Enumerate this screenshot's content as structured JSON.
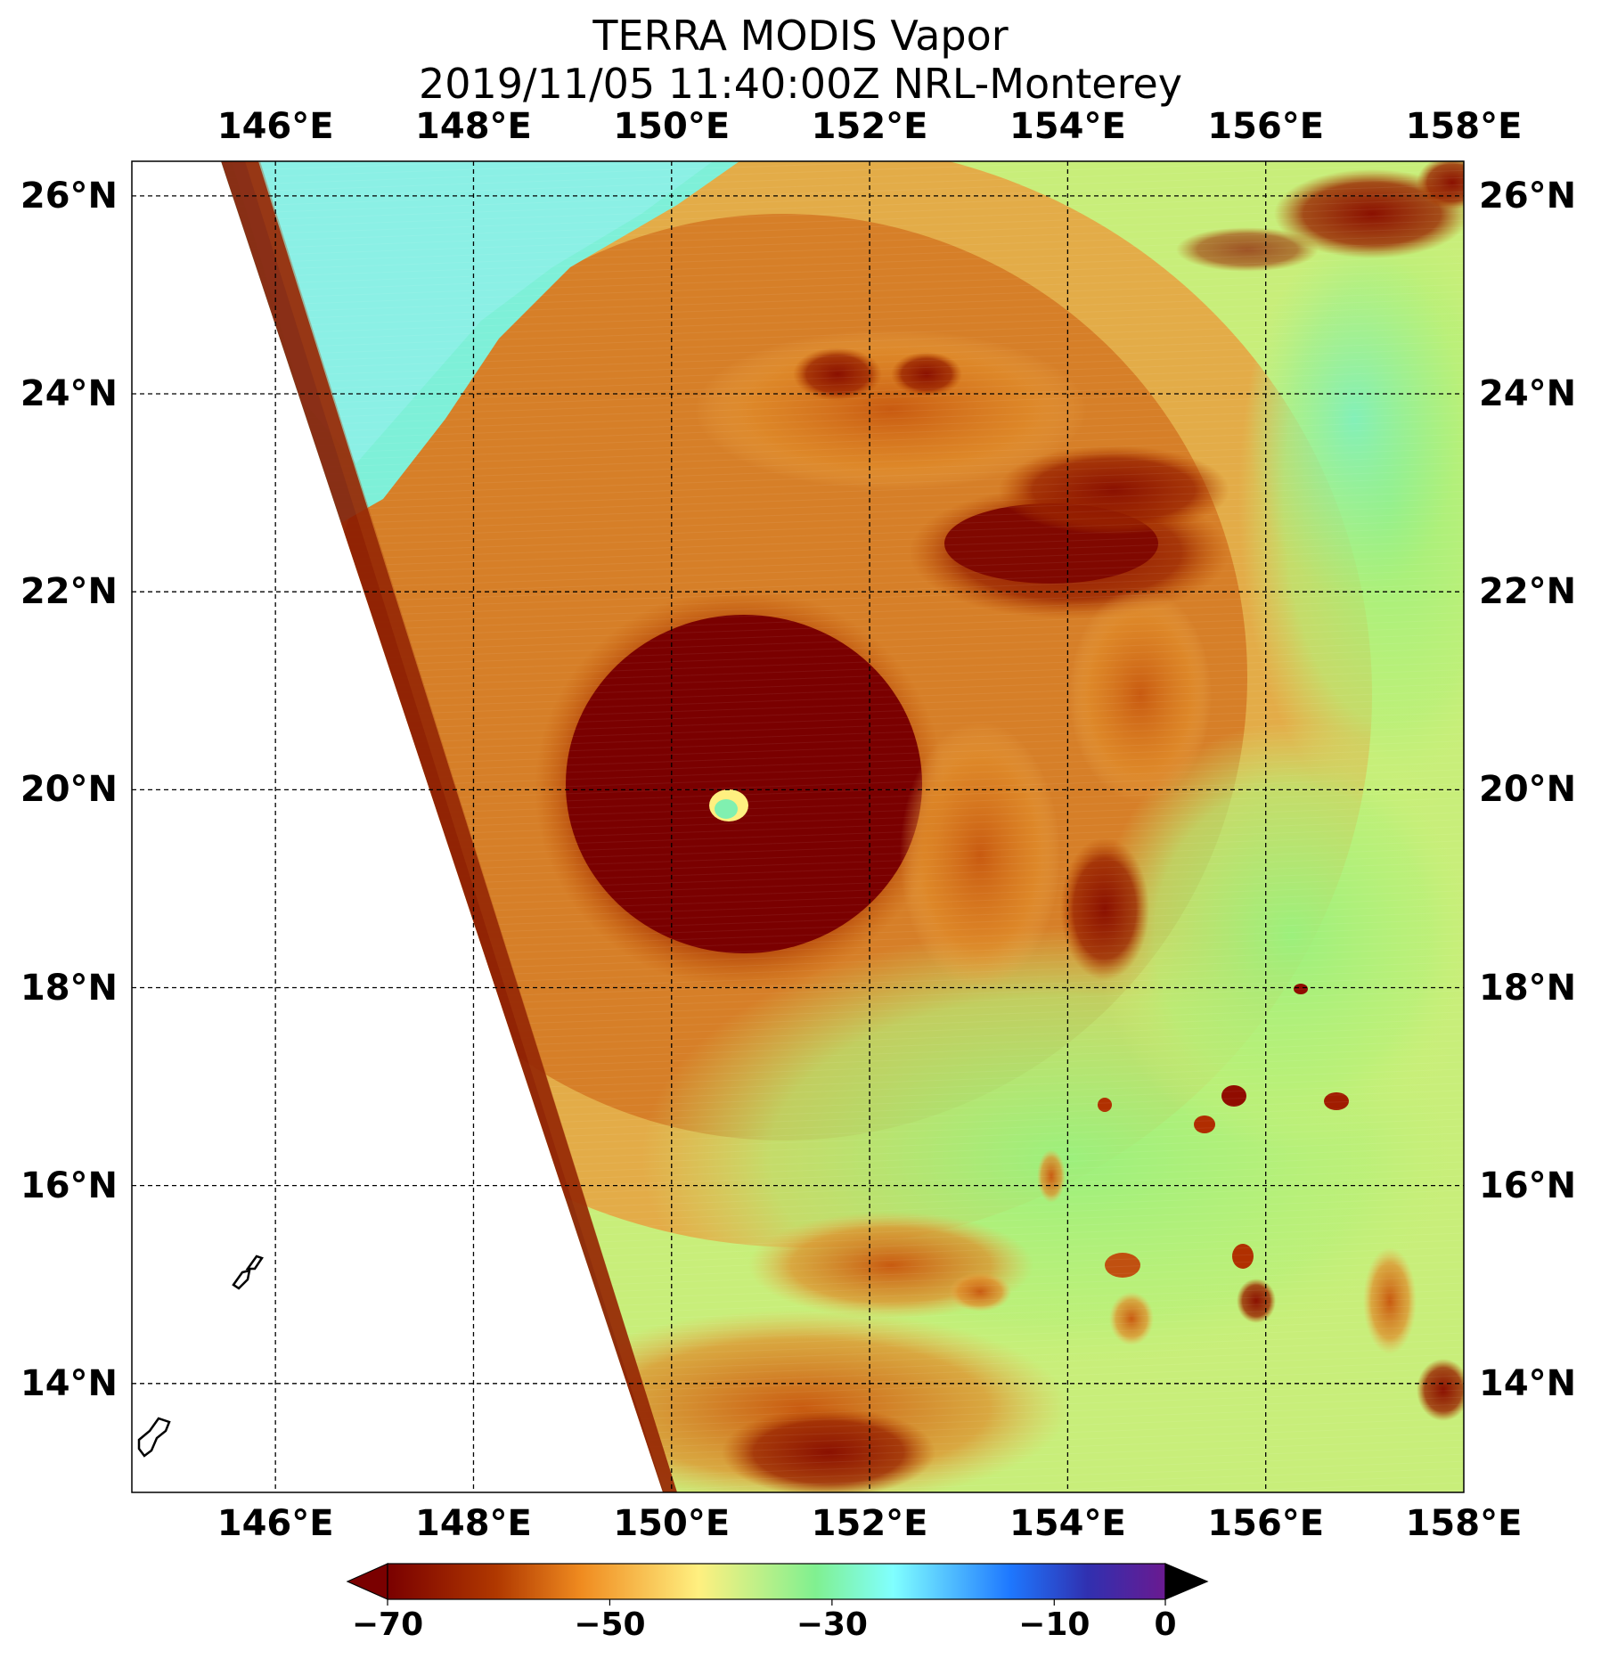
{
  "header": {
    "title": "TERRA MODIS Vapor",
    "subtitle": "2019/11/05 11:40:00Z NRL-Monterey"
  },
  "axes": {
    "longitude_labels": [
      "146°E",
      "148°E",
      "150°E",
      "152°E",
      "154°E",
      "156°E",
      "158°E"
    ],
    "latitude_labels": [
      "26°N",
      "24°N",
      "22°N",
      "20°N",
      "18°N",
      "16°N",
      "14°N"
    ],
    "longitudes": [
      146,
      148,
      150,
      152,
      154,
      156,
      158
    ],
    "latitudes": [
      26,
      24,
      22,
      20,
      18,
      16,
      14
    ],
    "lon_range": [
      144.55,
      158.0
    ],
    "lat_range": [
      12.9,
      26.35
    ],
    "grid": "dashed"
  },
  "colorbar": {
    "ticks": [
      "−70",
      "−50",
      "−30",
      "−10",
      "0"
    ],
    "values": [
      -70,
      -50,
      -30,
      -10,
      0
    ],
    "range": [
      -70,
      0
    ],
    "extend": "both",
    "colors": [
      "#7a0000",
      "#c04a00",
      "#f09a20",
      "#fff080",
      "#8cf080",
      "#80ffff",
      "#3a8cff",
      "#2040c0",
      "#601890",
      "#000000"
    ]
  },
  "map": {
    "storm_center": [
      150.55,
      19.8
    ],
    "swath_edge_color": "#8a1a00",
    "land_outline_color": "#000000"
  }
}
